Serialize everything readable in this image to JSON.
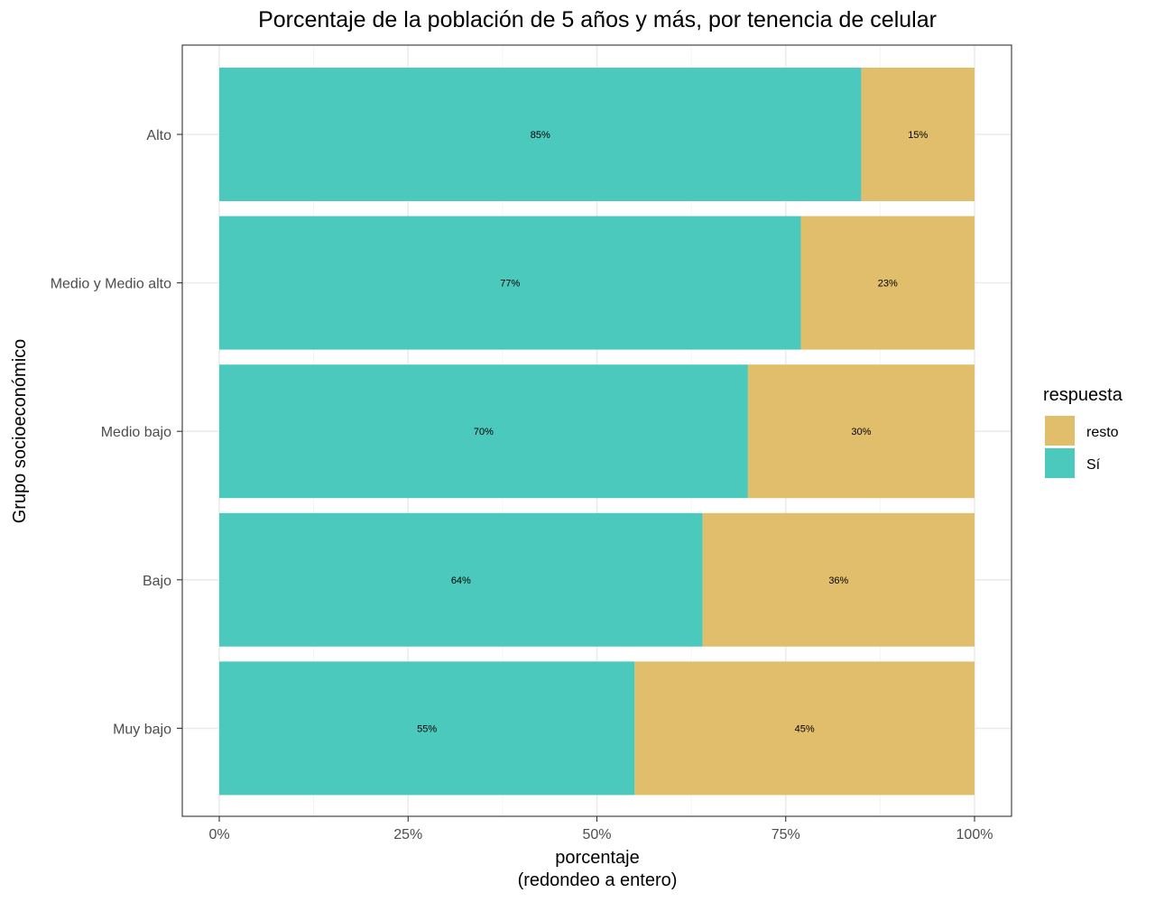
{
  "chart_data": {
    "type": "bar",
    "orientation": "horizontal",
    "stacked": true,
    "title": "Porcentaje de la población de 5 años y más, por tenencia de celular",
    "xlabel": "porcentaje",
    "xlabel_line2": "(redondeo a entero)",
    "ylabel": "Grupo socioeconómico",
    "categories": [
      "Alto",
      "Medio y Medio alto",
      "Medio bajo",
      "Bajo",
      "Muy bajo"
    ],
    "series": [
      {
        "name": "Sí",
        "color": "#4BC9BD",
        "values": [
          85,
          77,
          70,
          64,
          55
        ],
        "labels": [
          "85%",
          "77%",
          "70%",
          "64%",
          "55%"
        ]
      },
      {
        "name": "resto",
        "color": "#E0BE6B",
        "values": [
          15,
          23,
          30,
          36,
          45
        ],
        "labels": [
          "15%",
          "23%",
          "30%",
          "36%",
          "45%"
        ]
      }
    ],
    "xlim": [
      0,
      100
    ],
    "xticks": [
      0,
      25,
      50,
      75,
      100
    ],
    "xtick_labels": [
      "0%",
      "25%",
      "50%",
      "75%",
      "100%"
    ],
    "grid": true,
    "legend": {
      "title": "respuesta",
      "position": "right",
      "entries": [
        {
          "label": "resto",
          "color": "#E0BE6B"
        },
        {
          "label": "Sí",
          "color": "#4BC9BD"
        }
      ]
    }
  }
}
